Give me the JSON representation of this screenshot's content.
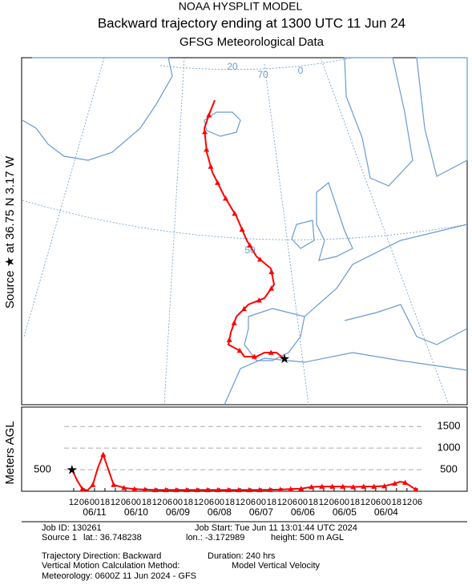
{
  "header": {
    "line1": "NOAA HYSPLIT MODEL",
    "title": "Backward trajectory ending at 1300 UTC 11 Jun 24",
    "subtitle": "GFSG Meteorological Data"
  },
  "map": {
    "side_label": "Source ★ at  36.75 N  3.17 W",
    "grid_labels": [
      "20",
      "70",
      "0",
      "50"
    ]
  },
  "chart_data": {
    "type": "line",
    "ylabel": "Meters AGL",
    "color": "#ff0000",
    "x": [
      0,
      3,
      6,
      9,
      12,
      15,
      18,
      21,
      24,
      30,
      36,
      42,
      48,
      54,
      60,
      66,
      72,
      78,
      84,
      90,
      96,
      102,
      108,
      114,
      120,
      126,
      132,
      138,
      144,
      150,
      156,
      162,
      168,
      174,
      180,
      186,
      189,
      192,
      198
    ],
    "values": [
      500,
      250,
      50,
      20,
      150,
      550,
      850,
      500,
      150,
      80,
      50,
      40,
      30,
      30,
      30,
      30,
      30,
      30,
      30,
      30,
      30,
      30,
      30,
      35,
      40,
      50,
      60,
      100,
      110,
      110,
      110,
      100,
      110,
      110,
      120,
      180,
      220,
      200,
      40
    ],
    "xlim": [
      0,
      200
    ],
    "ylim": [
      0,
      1950
    ],
    "yticks": [
      500,
      1000,
      1500
    ],
    "left_yticks": [
      500
    ],
    "xticks": [
      {
        "value": 1,
        "label": "12"
      },
      {
        "value": 7,
        "label": "06"
      },
      {
        "value": 13,
        "label": "00"
      },
      {
        "value": 19,
        "label": "18"
      },
      {
        "value": 25,
        "label": "12"
      },
      {
        "value": 31,
        "label": "06"
      },
      {
        "value": 37,
        "label": "00"
      },
      {
        "value": 43,
        "label": "18"
      },
      {
        "value": 49,
        "label": "12"
      },
      {
        "value": 55,
        "label": "06"
      },
      {
        "value": 61,
        "label": "00"
      },
      {
        "value": 67,
        "label": "18"
      },
      {
        "value": 73,
        "label": "12"
      },
      {
        "value": 79,
        "label": "06"
      },
      {
        "value": 85,
        "label": "00"
      },
      {
        "value": 91,
        "label": "18"
      },
      {
        "value": 97,
        "label": "12"
      },
      {
        "value": 103,
        "label": "06"
      },
      {
        "value": 109,
        "label": "00"
      },
      {
        "value": 115,
        "label": "18"
      },
      {
        "value": 121,
        "label": "12"
      },
      {
        "value": 127,
        "label": "06"
      },
      {
        "value": 133,
        "label": "00"
      },
      {
        "value": 139,
        "label": "18"
      },
      {
        "value": 145,
        "label": "12"
      },
      {
        "value": 151,
        "label": "06"
      },
      {
        "value": 157,
        "label": "00"
      },
      {
        "value": 163,
        "label": "18"
      },
      {
        "value": 169,
        "label": "12"
      },
      {
        "value": 175,
        "label": "06"
      },
      {
        "value": 181,
        "label": "00"
      },
      {
        "value": 187,
        "label": "18"
      },
      {
        "value": 193,
        "label": "12"
      },
      {
        "value": 199,
        "label": "06"
      }
    ],
    "date_ticks": [
      {
        "value": 13,
        "label": "06/11"
      },
      {
        "value": 37,
        "label": "06/10"
      },
      {
        "value": 61,
        "label": "06/09"
      },
      {
        "value": 85,
        "label": "06/08"
      },
      {
        "value": 109,
        "label": "06/07"
      },
      {
        "value": 133,
        "label": "06/06"
      },
      {
        "value": 157,
        "label": "06/05"
      },
      {
        "value": 181,
        "label": "06/04"
      }
    ]
  },
  "info": {
    "job_id": "Job ID: 130261",
    "job_start": "Job Start: Tue Jun 11 13:01:44 UTC 2024",
    "source": "Source 1",
    "lat": "lat.: 36.748238",
    "lon": "lon.: -3.172989",
    "height": "height: 500 m AGL",
    "direction": "Trajectory Direction: Backward",
    "duration": "Duration: 240 hrs",
    "vertical": "Vertical Motion Calculation Method:",
    "vertical_method": "Model Vertical Velocity",
    "meteorology": "Meteorology: 0600Z 11 Jun 2024 - GFS"
  }
}
